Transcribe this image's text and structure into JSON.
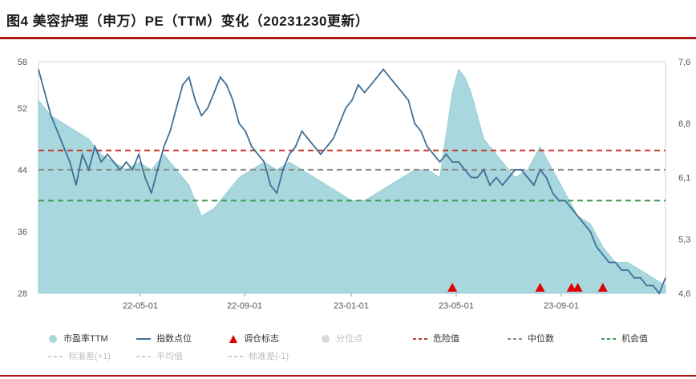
{
  "header": {
    "title": "图4 美容护理（申万）PE（TTM）变化（20231230更新）"
  },
  "colors": {
    "area_fill": "#a8d8de",
    "index_line": "#3f6f96",
    "danger": "#c0392b",
    "median": "#8c8c8c",
    "opportunity": "#3f9a55",
    "marker": "#e00000",
    "percentile": "#d9d9d9",
    "dim": "#cfcfcf"
  },
  "chart_data": {
    "type": "area",
    "x_ticks": [
      "22-05-01",
      "22-09-01",
      "23-01-01",
      "23-05-01",
      "23-09-01"
    ],
    "y_left": {
      "ticks": [
        "28",
        "36",
        "44",
        "52",
        "58"
      ],
      "range": [
        28,
        58
      ]
    },
    "y_right": {
      "ticks": [
        "4,6",
        "5,3",
        "6,1",
        "6,8",
        "7,6"
      ],
      "range": [
        4.6,
        7.6
      ]
    },
    "x_range": [
      0,
      100
    ],
    "pe_ttm": {
      "name": "市盈率TTM",
      "points": [
        [
          0,
          53
        ],
        [
          2,
          51
        ],
        [
          4,
          50
        ],
        [
          6,
          49
        ],
        [
          8,
          48
        ],
        [
          10,
          46
        ],
        [
          12,
          45
        ],
        [
          14,
          44
        ],
        [
          16,
          45
        ],
        [
          18,
          44
        ],
        [
          20,
          46
        ],
        [
          22,
          44
        ],
        [
          24,
          42
        ],
        [
          26,
          38
        ],
        [
          28,
          39
        ],
        [
          30,
          41
        ],
        [
          32,
          43
        ],
        [
          34,
          44
        ],
        [
          36,
          45
        ],
        [
          38,
          44
        ],
        [
          40,
          45
        ],
        [
          42,
          44
        ],
        [
          44,
          43
        ],
        [
          46,
          42
        ],
        [
          48,
          41
        ],
        [
          50,
          40
        ],
        [
          52,
          40
        ],
        [
          54,
          41
        ],
        [
          56,
          42
        ],
        [
          58,
          43
        ],
        [
          60,
          44
        ],
        [
          62,
          44
        ],
        [
          64,
          43
        ],
        [
          66,
          54
        ],
        [
          67,
          57
        ],
        [
          68,
          56
        ],
        [
          69,
          54
        ],
        [
          70,
          51
        ],
        [
          71,
          48
        ],
        [
          72,
          47
        ],
        [
          73,
          46
        ],
        [
          74,
          45
        ],
        [
          76,
          43
        ],
        [
          78,
          44
        ],
        [
          80,
          47
        ],
        [
          82,
          44
        ],
        [
          84,
          41
        ],
        [
          86,
          38
        ],
        [
          88,
          37
        ],
        [
          90,
          34
        ],
        [
          92,
          32
        ],
        [
          94,
          32
        ],
        [
          96,
          31
        ],
        [
          98,
          30
        ],
        [
          100,
          29
        ]
      ]
    },
    "index_level": {
      "name": "指数点位",
      "points": [
        [
          0,
          57
        ],
        [
          1,
          54
        ],
        [
          2,
          51
        ],
        [
          3,
          49
        ],
        [
          4,
          47
        ],
        [
          5,
          45
        ],
        [
          6,
          42
        ],
        [
          7,
          46
        ],
        [
          8,
          44
        ],
        [
          9,
          47
        ],
        [
          10,
          45
        ],
        [
          11,
          46
        ],
        [
          12,
          45
        ],
        [
          13,
          44
        ],
        [
          14,
          45
        ],
        [
          15,
          44
        ],
        [
          16,
          46
        ],
        [
          17,
          43
        ],
        [
          18,
          41
        ],
        [
          19,
          44
        ],
        [
          20,
          47
        ],
        [
          21,
          49
        ],
        [
          22,
          52
        ],
        [
          23,
          55
        ],
        [
          24,
          56
        ],
        [
          25,
          53
        ],
        [
          26,
          51
        ],
        [
          27,
          52
        ],
        [
          28,
          54
        ],
        [
          29,
          56
        ],
        [
          30,
          55
        ],
        [
          31,
          53
        ],
        [
          32,
          50
        ],
        [
          33,
          49
        ],
        [
          34,
          47
        ],
        [
          35,
          46
        ],
        [
          36,
          45
        ],
        [
          37,
          42
        ],
        [
          38,
          41
        ],
        [
          39,
          44
        ],
        [
          40,
          46
        ],
        [
          41,
          47
        ],
        [
          42,
          49
        ],
        [
          43,
          48
        ],
        [
          44,
          47
        ],
        [
          45,
          46
        ],
        [
          46,
          47
        ],
        [
          47,
          48
        ],
        [
          48,
          50
        ],
        [
          49,
          52
        ],
        [
          50,
          53
        ],
        [
          51,
          55
        ],
        [
          52,
          54
        ],
        [
          53,
          55
        ],
        [
          54,
          56
        ],
        [
          55,
          57
        ],
        [
          56,
          56
        ],
        [
          57,
          55
        ],
        [
          58,
          54
        ],
        [
          59,
          53
        ],
        [
          60,
          50
        ],
        [
          61,
          49
        ],
        [
          62,
          47
        ],
        [
          63,
          46
        ],
        [
          64,
          45
        ],
        [
          65,
          46
        ],
        [
          66,
          45
        ],
        [
          67,
          45
        ],
        [
          68,
          44
        ],
        [
          69,
          43
        ],
        [
          70,
          43
        ],
        [
          71,
          44
        ],
        [
          72,
          42
        ],
        [
          73,
          43
        ],
        [
          74,
          42
        ],
        [
          75,
          43
        ],
        [
          76,
          44
        ],
        [
          77,
          44
        ],
        [
          78,
          43
        ],
        [
          79,
          42
        ],
        [
          80,
          44
        ],
        [
          81,
          43
        ],
        [
          82,
          41
        ],
        [
          83,
          40
        ],
        [
          84,
          40
        ],
        [
          85,
          39
        ],
        [
          86,
          38
        ],
        [
          87,
          37
        ],
        [
          88,
          36
        ],
        [
          89,
          34
        ],
        [
          90,
          33
        ],
        [
          91,
          32
        ],
        [
          92,
          32
        ],
        [
          93,
          31
        ],
        [
          94,
          31
        ],
        [
          95,
          30
        ],
        [
          96,
          30
        ],
        [
          97,
          29
        ],
        [
          98,
          29
        ],
        [
          99,
          28
        ],
        [
          100,
          30
        ]
      ]
    },
    "thresholds": [
      {
        "name": "危险值",
        "value": 46.5,
        "color": "#c0392b"
      },
      {
        "name": "中位数",
        "value": 44,
        "color": "#8c8c8c"
      },
      {
        "name": "机会值",
        "value": 40,
        "color": "#3f9a55"
      }
    ],
    "rebalance_markers": {
      "name": "调仓标志",
      "x": [
        66,
        80,
        85,
        86,
        90
      ]
    },
    "legend": {
      "row1": [
        "市盈率TTM",
        "指数点位",
        "调仓标志",
        "分位点",
        "危险值",
        "中位数",
        "机会值"
      ],
      "row2": [
        "标准差(+1)",
        "平均值",
        "标准差(-1)"
      ]
    },
    "grid": true
  }
}
